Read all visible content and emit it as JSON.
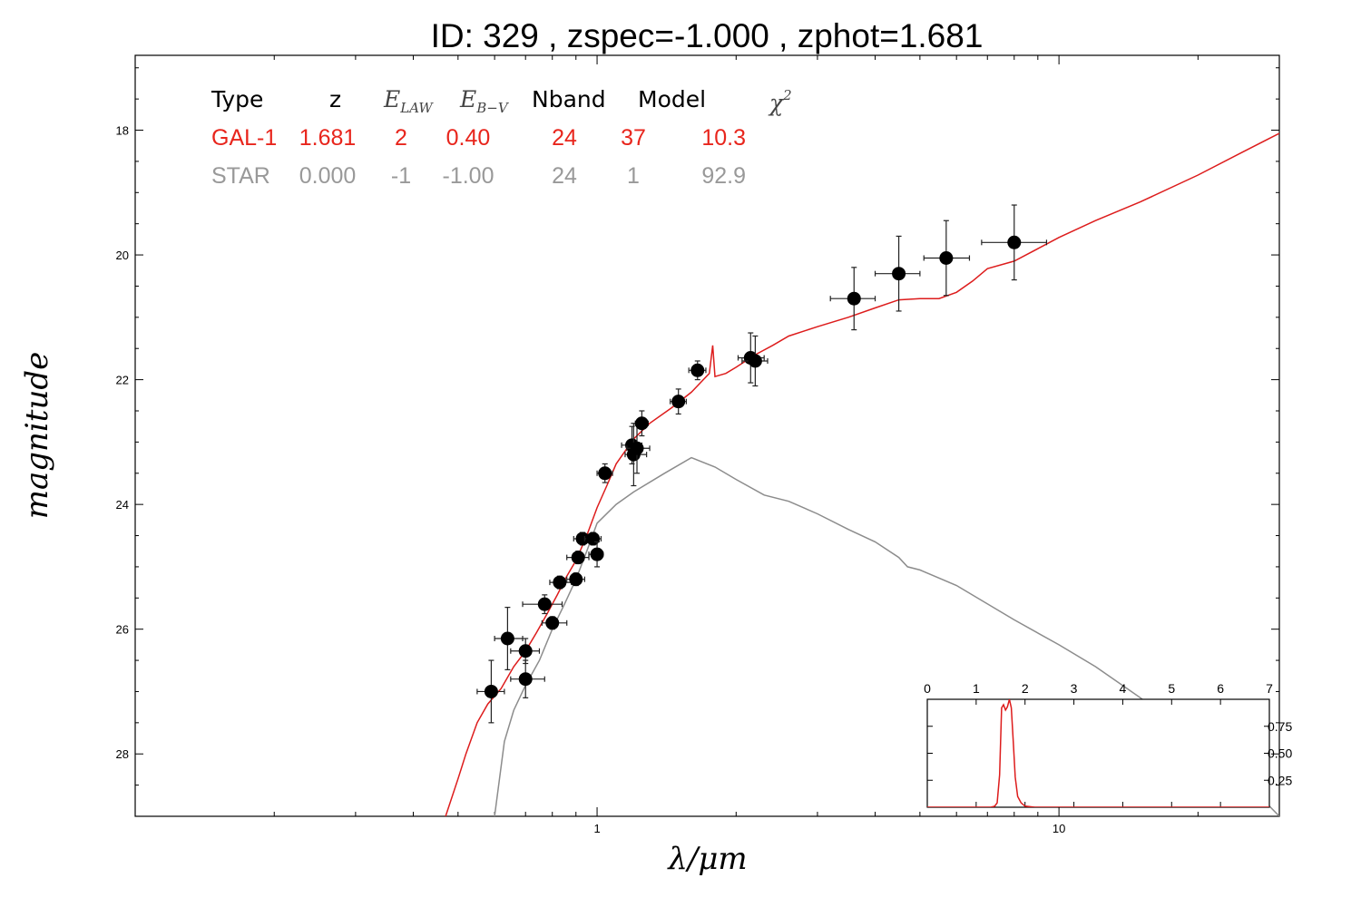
{
  "title": "ID:  329   , zspec=-1.000 , zphot=1.681",
  "chart_data": {
    "type": "scatter",
    "xlabel": "λ/μm",
    "ylabel": "magnitude",
    "x_scale": "log",
    "y_inverted": true,
    "xlim": [
      0.1,
      30
    ],
    "ylim": [
      29.0,
      16.8
    ],
    "x_tick_labels": [
      "1",
      "10"
    ],
    "x_tick_values": [
      1,
      10
    ],
    "y_tick_labels": [
      "18",
      "20",
      "22",
      "24",
      "26",
      "28"
    ],
    "y_tick_values": [
      18,
      20,
      22,
      24,
      26,
      28
    ],
    "table": {
      "headers": [
        "Type",
        "z",
        "E_LAW",
        "E_B-V",
        "Nband",
        "Model",
        "χ²"
      ],
      "rows": [
        {
          "cells": [
            "GAL-1",
            "1.681",
            "2",
            "0.40",
            "24",
            "37",
            "10.3"
          ],
          "color": "#e8251c"
        },
        {
          "cells": [
            "STAR",
            "0.000",
            "-1",
            "-1.00",
            "24",
            "1",
            "92.9"
          ],
          "color": "#999999"
        }
      ]
    },
    "series": [
      {
        "name": "GAL-1",
        "color": "#dd1c1c",
        "points": [
          [
            0.47,
            29.0
          ],
          [
            0.5,
            28.4
          ],
          [
            0.52,
            28.0
          ],
          [
            0.55,
            27.5
          ],
          [
            0.58,
            27.2
          ],
          [
            0.62,
            26.95
          ],
          [
            0.66,
            26.6
          ],
          [
            0.7,
            26.35
          ],
          [
            0.74,
            26.05
          ],
          [
            0.78,
            25.75
          ],
          [
            0.82,
            25.45
          ],
          [
            0.86,
            25.15
          ],
          [
            0.9,
            24.9
          ],
          [
            0.95,
            24.5
          ],
          [
            1.0,
            24.05
          ],
          [
            1.05,
            23.7
          ],
          [
            1.1,
            23.35
          ],
          [
            1.2,
            22.95
          ],
          [
            1.3,
            22.7
          ],
          [
            1.45,
            22.45
          ],
          [
            1.6,
            22.2
          ],
          [
            1.75,
            21.9
          ],
          [
            1.78,
            21.45
          ],
          [
            1.8,
            21.95
          ],
          [
            1.9,
            21.9
          ],
          [
            2.0,
            21.8
          ],
          [
            2.2,
            21.6
          ],
          [
            2.4,
            21.45
          ],
          [
            2.6,
            21.3
          ],
          [
            3.0,
            21.15
          ],
          [
            3.5,
            21.0
          ],
          [
            4.0,
            20.85
          ],
          [
            4.5,
            20.72
          ],
          [
            5.0,
            20.7
          ],
          [
            5.5,
            20.7
          ],
          [
            6.0,
            20.6
          ],
          [
            6.5,
            20.42
          ],
          [
            7.0,
            20.22
          ],
          [
            8.0,
            20.1
          ],
          [
            9.0,
            19.9
          ],
          [
            10.0,
            19.72
          ],
          [
            12.0,
            19.45
          ],
          [
            15.0,
            19.15
          ],
          [
            20.0,
            18.72
          ],
          [
            25.0,
            18.35
          ],
          [
            30.0,
            18.05
          ]
        ]
      },
      {
        "name": "STAR",
        "color": "#8c8c8c",
        "points": [
          [
            0.6,
            29.0
          ],
          [
            0.63,
            27.8
          ],
          [
            0.66,
            27.3
          ],
          [
            0.7,
            26.9
          ],
          [
            0.75,
            26.5
          ],
          [
            0.8,
            26.0
          ],
          [
            0.85,
            25.6
          ],
          [
            0.9,
            25.2
          ],
          [
            0.95,
            24.75
          ],
          [
            1.0,
            24.3
          ],
          [
            1.1,
            24.0
          ],
          [
            1.2,
            23.8
          ],
          [
            1.4,
            23.5
          ],
          [
            1.6,
            23.25
          ],
          [
            1.8,
            23.4
          ],
          [
            2.0,
            23.6
          ],
          [
            2.3,
            23.85
          ],
          [
            2.6,
            23.95
          ],
          [
            3.0,
            24.15
          ],
          [
            3.5,
            24.4
          ],
          [
            4.0,
            24.6
          ],
          [
            4.5,
            24.85
          ],
          [
            4.7,
            25.0
          ],
          [
            5.0,
            25.05
          ],
          [
            6.0,
            25.3
          ],
          [
            8.0,
            25.85
          ],
          [
            10.0,
            26.25
          ],
          [
            12.0,
            26.6
          ],
          [
            15.0,
            27.1
          ],
          [
            20.0,
            27.8
          ],
          [
            25.0,
            28.4
          ],
          [
            30.0,
            29.0
          ]
        ]
      }
    ],
    "photometry": [
      {
        "x": 0.59,
        "y": 27.0,
        "xlo": 0.55,
        "xhi": 0.63,
        "yerr": 0.5
      },
      {
        "x": 0.64,
        "y": 26.15,
        "xlo": 0.6,
        "xhi": 0.69,
        "yerr": 0.5
      },
      {
        "x": 0.7,
        "y": 26.35,
        "xlo": 0.65,
        "xhi": 0.75,
        "yerr": 0.2
      },
      {
        "x": 0.7,
        "y": 26.8,
        "xlo": 0.65,
        "xhi": 0.77,
        "yerr": 0.3
      },
      {
        "x": 0.77,
        "y": 25.6,
        "xlo": 0.69,
        "xhi": 0.84,
        "yerr": 0.15
      },
      {
        "x": 0.8,
        "y": 25.9,
        "xlo": 0.76,
        "xhi": 0.86,
        "yerr": 0.1
      },
      {
        "x": 0.83,
        "y": 25.25,
        "xlo": 0.79,
        "xhi": 0.88,
        "yerr": 0.1
      },
      {
        "x": 0.9,
        "y": 25.2,
        "xlo": 0.86,
        "xhi": 0.94,
        "yerr": 0.1
      },
      {
        "x": 0.91,
        "y": 24.85,
        "xlo": 0.86,
        "xhi": 0.96,
        "yerr": 0.1
      },
      {
        "x": 0.93,
        "y": 24.55,
        "xlo": 0.89,
        "xhi": 0.96,
        "yerr": 0.1
      },
      {
        "x": 0.98,
        "y": 24.55,
        "xlo": 0.94,
        "xhi": 1.02,
        "yerr": 0.1
      },
      {
        "x": 1.0,
        "y": 24.8,
        "xlo": 0.96,
        "xhi": 1.03,
        "yerr": 0.2
      },
      {
        "x": 1.04,
        "y": 23.5,
        "xlo": 1.0,
        "xhi": 1.08,
        "yerr": 0.15
      },
      {
        "x": 1.19,
        "y": 23.05,
        "xlo": 1.13,
        "xhi": 1.25,
        "yerr": 0.3
      },
      {
        "x": 1.2,
        "y": 23.2,
        "xlo": 1.15,
        "xhi": 1.28,
        "yerr": 0.5
      },
      {
        "x": 1.22,
        "y": 23.1,
        "xlo": 1.16,
        "xhi": 1.3,
        "yerr": 0.4
      },
      {
        "x": 1.25,
        "y": 22.7,
        "xlo": 1.21,
        "xhi": 1.29,
        "yerr": 0.2
      },
      {
        "x": 1.5,
        "y": 22.35,
        "xlo": 1.44,
        "xhi": 1.56,
        "yerr": 0.2
      },
      {
        "x": 1.65,
        "y": 21.85,
        "xlo": 1.58,
        "xhi": 1.72,
        "yerr": 0.15
      },
      {
        "x": 2.15,
        "y": 21.65,
        "xlo": 2.02,
        "xhi": 2.3,
        "yerr": 0.4
      },
      {
        "x": 2.2,
        "y": 21.7,
        "xlo": 2.06,
        "xhi": 2.34,
        "yerr": 0.4
      },
      {
        "x": 3.6,
        "y": 20.7,
        "xlo": 3.2,
        "xhi": 4.0,
        "yerr": 0.5
      },
      {
        "x": 4.5,
        "y": 20.3,
        "xlo": 4.0,
        "xhi": 5.0,
        "yerr": 0.6
      },
      {
        "x": 5.7,
        "y": 20.05,
        "xlo": 5.1,
        "xhi": 6.4,
        "yerr": 0.6
      },
      {
        "x": 8.0,
        "y": 19.8,
        "xlo": 6.8,
        "xhi": 9.4,
        "yerr": 0.6
      }
    ],
    "inset": {
      "type": "line",
      "xlim": [
        0,
        7
      ],
      "ylim": [
        0,
        1.0
      ],
      "x_tick_labels": [
        "0",
        "1",
        "2",
        "3",
        "4",
        "5",
        "6",
        "7"
      ],
      "x_tick_values": [
        0,
        1,
        2,
        3,
        4,
        5,
        6,
        7
      ],
      "y_tick_labels": [
        "0.25",
        "0.50",
        "0.75"
      ],
      "y_tick_values": [
        0.25,
        0.5,
        0.75
      ],
      "color": "#dd1c1c",
      "points": [
        [
          0,
          0
        ],
        [
          1.3,
          0
        ],
        [
          1.38,
          0.01
        ],
        [
          1.43,
          0.04
        ],
        [
          1.48,
          0.3
        ],
        [
          1.52,
          0.92
        ],
        [
          1.56,
          0.95
        ],
        [
          1.6,
          0.9
        ],
        [
          1.64,
          0.93
        ],
        [
          1.68,
          1.0
        ],
        [
          1.72,
          0.92
        ],
        [
          1.76,
          0.6
        ],
        [
          1.8,
          0.28
        ],
        [
          1.85,
          0.1
        ],
        [
          1.92,
          0.04
        ],
        [
          2.0,
          0.01
        ],
        [
          2.2,
          0
        ],
        [
          7,
          0
        ]
      ]
    }
  }
}
